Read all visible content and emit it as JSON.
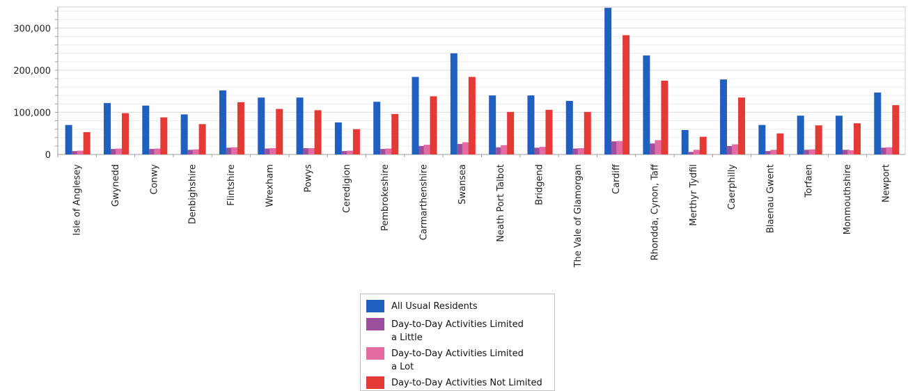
{
  "chart_data": {
    "type": "bar",
    "title": "",
    "xlabel": "",
    "ylabel": "",
    "ylim": [
      0,
      350000
    ],
    "yticks": [
      0,
      100000,
      200000,
      300000
    ],
    "ytick_labels": [
      "0",
      "100,000",
      "200,000",
      "300,000"
    ],
    "grid": true,
    "legend_position": "bottom-center",
    "categories": [
      "Isle of Anglesey",
      "Gwynedd",
      "Conwy",
      "Denbighshire",
      "Flintshire",
      "Wrexham",
      "Powys",
      "Ceredigion",
      "Pembrokeshire",
      "Carmarthenshire",
      "Swansea",
      "Neath Port Talbot",
      "Bridgend",
      "The Vale of Glamorgan",
      "Cardiff",
      "Rhondda, Cynon, Taff",
      "Merthyr Tydfil",
      "Caerphilly",
      "Blaenau Gwent",
      "Torfaen",
      "Monmouthshire",
      "Newport"
    ],
    "series": [
      {
        "name": "All Usual Residents",
        "color": "#1f5fbf",
        "values": [
          70000,
          122000,
          116000,
          95000,
          152000,
          135000,
          135000,
          76000,
          125000,
          184000,
          240000,
          140000,
          140000,
          127000,
          348000,
          235000,
          58000,
          178000,
          70000,
          92000,
          92000,
          147000
        ]
      },
      {
        "name": "Day-to-Day Activities Limited a Little",
        "color": "#9b4f9d",
        "values": [
          8000,
          13000,
          13000,
          11000,
          16000,
          14000,
          15000,
          8000,
          13000,
          20000,
          25000,
          17000,
          16000,
          14000,
          31000,
          26000,
          6000,
          20000,
          8000,
          11000,
          11000,
          16000
        ]
      },
      {
        "name": "Day-to-Day Activities Limited a Lot",
        "color": "#e46ca3",
        "values": [
          9000,
          14000,
          14000,
          12000,
          17000,
          15000,
          15000,
          9000,
          14000,
          23000,
          29000,
          22000,
          18000,
          15000,
          32000,
          34000,
          11000,
          24000,
          11000,
          12000,
          10000,
          17000
        ]
      },
      {
        "name": "Day-to-Day Activities Not Limited",
        "color": "#e53935",
        "values": [
          53000,
          98000,
          88000,
          72000,
          124000,
          108000,
          105000,
          60000,
          96000,
          138000,
          184000,
          101000,
          106000,
          101000,
          283000,
          175000,
          42000,
          135000,
          50000,
          69000,
          74000,
          117000
        ]
      }
    ]
  },
  "legend": {
    "items": [
      {
        "label_lines": [
          "All Usual Residents"
        ],
        "color": "#1f5fbf"
      },
      {
        "label_lines": [
          "Day-to-Day Activities Limited",
          "a Little"
        ],
        "color": "#9b4f9d"
      },
      {
        "label_lines": [
          "Day-to-Day Activities Limited",
          "a Lot"
        ],
        "color": "#e46ca3"
      },
      {
        "label_lines": [
          "Day-to-Day Activities Not Limited"
        ],
        "color": "#e53935"
      }
    ]
  }
}
